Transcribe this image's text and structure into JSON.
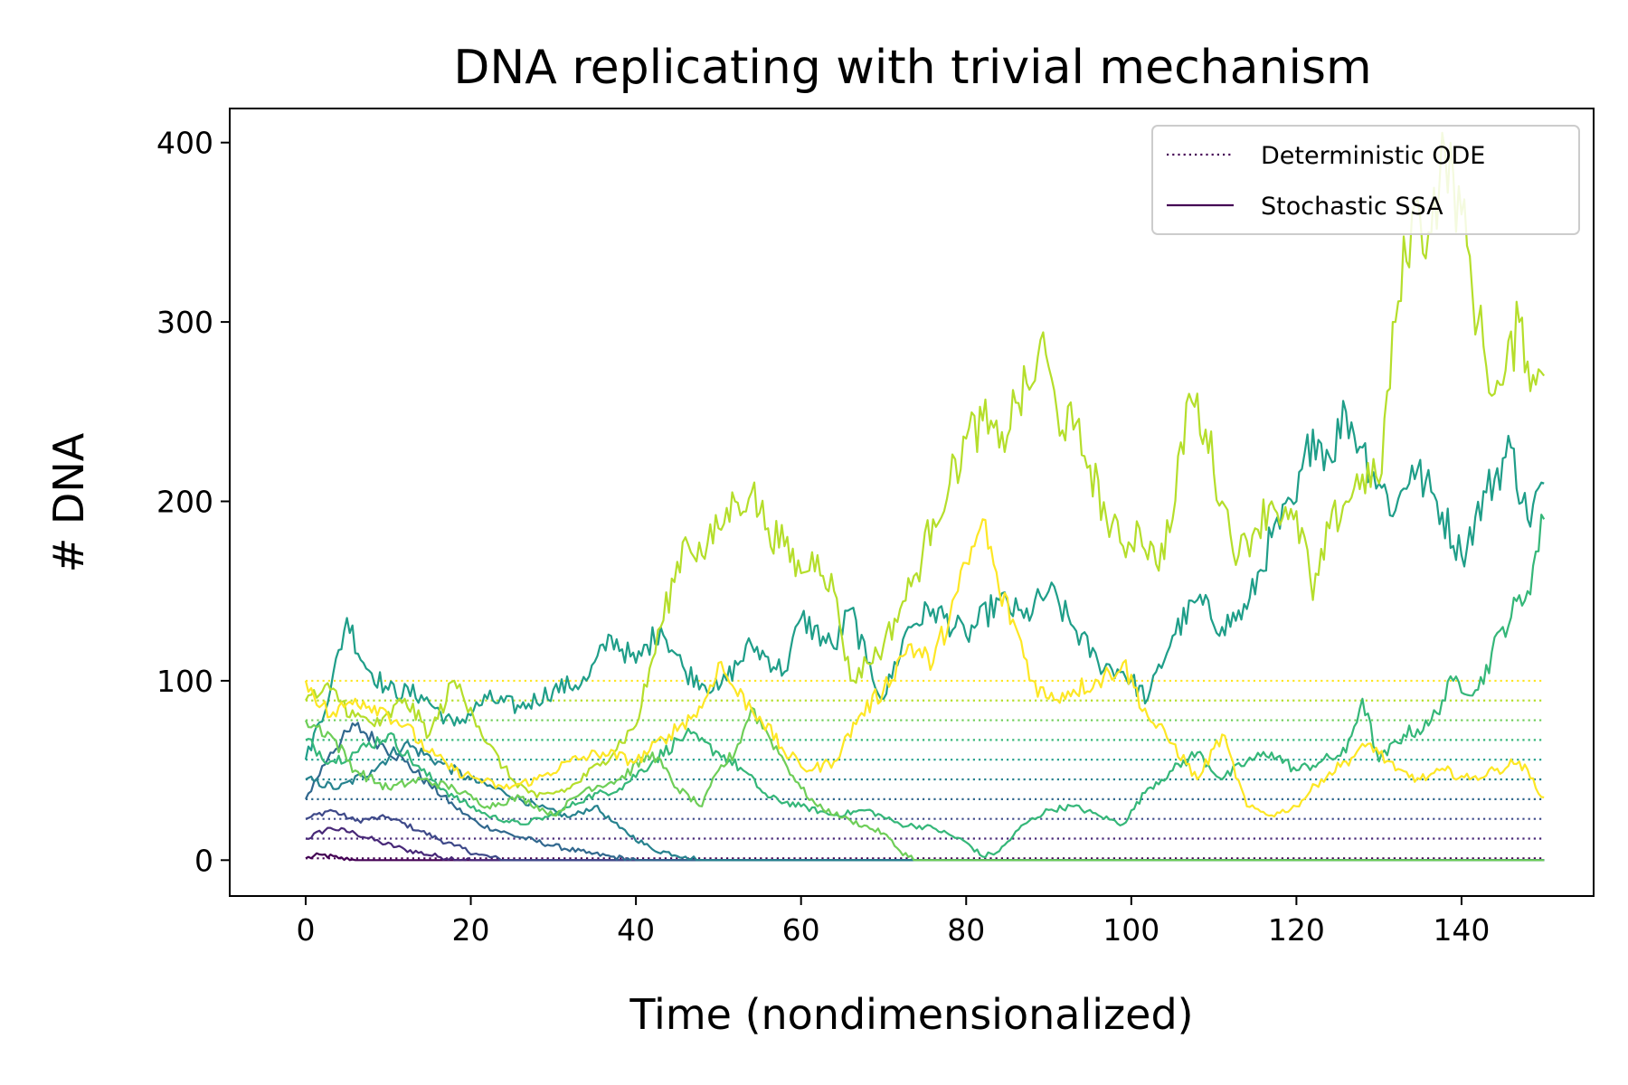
{
  "chart_data": {
    "type": "line",
    "title": "DNA replicating with trivial mechanism",
    "xlabel": "Time (nondimensionalized)",
    "ylabel": "# DNA",
    "xlim": [
      -9.2,
      156
    ],
    "ylim": [
      -20,
      419
    ],
    "xticks": [
      0,
      20,
      40,
      60,
      80,
      100,
      120,
      140
    ],
    "yticks": [
      0,
      100,
      200,
      300,
      400
    ],
    "grid": false,
    "colormap": "viridis",
    "legend": {
      "position": "top-right",
      "entries": [
        {
          "label": "Deterministic ODE",
          "style": "dotted",
          "color": "#440154"
        },
        {
          "label": "Stochastic SSA",
          "style": "solid",
          "color": "#440154"
        }
      ]
    },
    "ode_levels": [
      1,
      12,
      23,
      34,
      45,
      56,
      67,
      78,
      89,
      100
    ],
    "ode_colors": [
      "#440154",
      "#482878",
      "#3e4989",
      "#31688e",
      "#26828e",
      "#1f9e89",
      "#35b779",
      "#6ece58",
      "#b5de2b",
      "#fde725"
    ],
    "ssa_series": [
      {
        "color": "#440154",
        "points": [
          [
            0,
            1
          ],
          [
            2,
            3
          ],
          [
            4,
            1
          ],
          [
            6,
            0
          ],
          [
            150,
            0
          ]
        ]
      },
      {
        "color": "#482878",
        "points": [
          [
            0,
            12
          ],
          [
            3,
            18
          ],
          [
            6,
            15
          ],
          [
            9,
            10
          ],
          [
            12,
            6
          ],
          [
            16,
            2
          ],
          [
            20,
            0
          ],
          [
            150,
            0
          ]
        ]
      },
      {
        "color": "#3e4989",
        "points": [
          [
            0,
            23
          ],
          [
            3,
            28
          ],
          [
            6,
            22
          ],
          [
            10,
            24
          ],
          [
            14,
            16
          ],
          [
            18,
            8
          ],
          [
            21,
            3
          ],
          [
            24,
            0
          ],
          [
            150,
            0
          ]
        ]
      },
      {
        "color": "#31688e",
        "points": [
          [
            0,
            34
          ],
          [
            3,
            60
          ],
          [
            6,
            75
          ],
          [
            9,
            65
          ],
          [
            12,
            55
          ],
          [
            15,
            42
          ],
          [
            18,
            30
          ],
          [
            21,
            20
          ],
          [
            25,
            14
          ],
          [
            30,
            8
          ],
          [
            34,
            4
          ],
          [
            37,
            2
          ],
          [
            40,
            0
          ],
          [
            150,
            0
          ]
        ]
      },
      {
        "color": "#26828e",
        "points": [
          [
            0,
            45
          ],
          [
            4,
            40
          ],
          [
            8,
            50
          ],
          [
            12,
            65
          ],
          [
            16,
            55
          ],
          [
            20,
            45
          ],
          [
            24,
            38
          ],
          [
            28,
            30
          ],
          [
            32,
            24
          ],
          [
            35,
            30
          ],
          [
            38,
            18
          ],
          [
            42,
            6
          ],
          [
            46,
            2
          ],
          [
            48,
            0
          ],
          [
            150,
            0
          ]
        ]
      },
      {
        "color": "#1f9e89",
        "points": [
          [
            0,
            56
          ],
          [
            3,
            95
          ],
          [
            5,
            135
          ],
          [
            7,
            110
          ],
          [
            10,
            95
          ],
          [
            14,
            92
          ],
          [
            18,
            75
          ],
          [
            22,
            90
          ],
          [
            26,
            85
          ],
          [
            30,
            95
          ],
          [
            34,
            100
          ],
          [
            37,
            125
          ],
          [
            40,
            110
          ],
          [
            43,
            130
          ],
          [
            46,
            105
          ],
          [
            50,
            95
          ],
          [
            54,
            120
          ],
          [
            58,
            105
          ],
          [
            60,
            135
          ],
          [
            64,
            118
          ],
          [
            66,
            140
          ],
          [
            68,
            110
          ],
          [
            70,
            90
          ],
          [
            73,
            130
          ],
          [
            76,
            140
          ],
          [
            80,
            125
          ],
          [
            84,
            145
          ],
          [
            87,
            135
          ],
          [
            90,
            150
          ],
          [
            93,
            130
          ],
          [
            96,
            110
          ],
          [
            99,
            105
          ],
          [
            102,
            90
          ],
          [
            105,
            125
          ],
          [
            108,
            145
          ],
          [
            111,
            130
          ],
          [
            114,
            140
          ],
          [
            117,
            180
          ],
          [
            120,
            200
          ],
          [
            122,
            240
          ],
          [
            124,
            225
          ],
          [
            126,
            250
          ],
          [
            128,
            230
          ],
          [
            130,
            210
          ],
          [
            132,
            195
          ],
          [
            134,
            220
          ],
          [
            137,
            200
          ],
          [
            140,
            170
          ],
          [
            143,
            205
          ],
          [
            146,
            230
          ],
          [
            148,
            190
          ],
          [
            150,
            210
          ]
        ]
      },
      {
        "color": "#35b779",
        "points": [
          [
            0,
            67
          ],
          [
            3,
            55
          ],
          [
            6,
            60
          ],
          [
            10,
            70
          ],
          [
            14,
            50
          ],
          [
            18,
            35
          ],
          [
            22,
            25
          ],
          [
            26,
            20
          ],
          [
            30,
            25
          ],
          [
            34,
            35
          ],
          [
            38,
            40
          ],
          [
            42,
            55
          ],
          [
            46,
            70
          ],
          [
            50,
            60
          ],
          [
            53,
            50
          ],
          [
            56,
            35
          ],
          [
            60,
            30
          ],
          [
            64,
            25
          ],
          [
            68,
            28
          ],
          [
            72,
            20
          ],
          [
            76,
            18
          ],
          [
            80,
            10
          ],
          [
            82,
            2
          ],
          [
            84,
            5
          ],
          [
            87,
            20
          ],
          [
            90,
            28
          ],
          [
            93,
            30
          ],
          [
            96,
            25
          ],
          [
            99,
            20
          ],
          [
            102,
            40
          ],
          [
            105,
            50
          ],
          [
            108,
            60
          ],
          [
            111,
            45
          ],
          [
            114,
            55
          ],
          [
            117,
            60
          ],
          [
            120,
            50
          ],
          [
            123,
            55
          ],
          [
            126,
            60
          ],
          [
            128,
            90
          ],
          [
            130,
            55
          ],
          [
            133,
            70
          ],
          [
            136,
            75
          ],
          [
            139,
            100
          ],
          [
            142,
            95
          ],
          [
            145,
            130
          ],
          [
            148,
            150
          ],
          [
            150,
            190
          ]
        ]
      },
      {
        "color": "#6ece58",
        "points": [
          [
            0,
            78
          ],
          [
            3,
            70
          ],
          [
            6,
            50
          ],
          [
            10,
            40
          ],
          [
            14,
            45
          ],
          [
            18,
            40
          ],
          [
            22,
            30
          ],
          [
            26,
            35
          ],
          [
            30,
            25
          ],
          [
            34,
            40
          ],
          [
            38,
            45
          ],
          [
            42,
            60
          ],
          [
            45,
            40
          ],
          [
            48,
            30
          ],
          [
            50,
            50
          ],
          [
            52,
            60
          ],
          [
            54,
            85
          ],
          [
            56,
            70
          ],
          [
            58,
            55
          ],
          [
            60,
            40
          ],
          [
            62,
            30
          ],
          [
            66,
            22
          ],
          [
            70,
            15
          ],
          [
            72,
            5
          ],
          [
            74,
            0
          ],
          [
            150,
            0
          ]
        ]
      },
      {
        "color": "#b5de2b",
        "points": [
          [
            0,
            89
          ],
          [
            3,
            95
          ],
          [
            6,
            80
          ],
          [
            9,
            75
          ],
          [
            12,
            90
          ],
          [
            15,
            70
          ],
          [
            18,
            100
          ],
          [
            20,
            85
          ],
          [
            22,
            65
          ],
          [
            25,
            45
          ],
          [
            28,
            35
          ],
          [
            32,
            40
          ],
          [
            36,
            55
          ],
          [
            40,
            75
          ],
          [
            43,
            130
          ],
          [
            46,
            180
          ],
          [
            48,
            170
          ],
          [
            50,
            185
          ],
          [
            52,
            200
          ],
          [
            54,
            205
          ],
          [
            56,
            185
          ],
          [
            58,
            175
          ],
          [
            60,
            160
          ],
          [
            62,
            170
          ],
          [
            64,
            150
          ],
          [
            66,
            100
          ],
          [
            68,
            110
          ],
          [
            70,
            120
          ],
          [
            72,
            140
          ],
          [
            74,
            160
          ],
          [
            76,
            190
          ],
          [
            78,
            210
          ],
          [
            80,
            235
          ],
          [
            82,
            245
          ],
          [
            84,
            230
          ],
          [
            86,
            255
          ],
          [
            88,
            265
          ],
          [
            89,
            290
          ],
          [
            91,
            250
          ],
          [
            93,
            240
          ],
          [
            95,
            220
          ],
          [
            97,
            190
          ],
          [
            99,
            175
          ],
          [
            101,
            185
          ],
          [
            103,
            165
          ],
          [
            105,
            190
          ],
          [
            107,
            260
          ],
          [
            109,
            240
          ],
          [
            111,
            200
          ],
          [
            113,
            170
          ],
          [
            115,
            185
          ],
          [
            117,
            200
          ],
          [
            119,
            190
          ],
          [
            121,
            180
          ],
          [
            122,
            145
          ],
          [
            124,
            185
          ],
          [
            126,
            200
          ],
          [
            128,
            215
          ],
          [
            130,
            210
          ],
          [
            132,
            300
          ],
          [
            134,
            360
          ],
          [
            136,
            350
          ],
          [
            138,
            395
          ],
          [
            140,
            360
          ],
          [
            142,
            300
          ],
          [
            144,
            260
          ],
          [
            145,
            265
          ],
          [
            147,
            300
          ],
          [
            149,
            265
          ],
          [
            150,
            270
          ]
        ]
      },
      {
        "color": "#fde725",
        "points": [
          [
            0,
            100
          ],
          [
            3,
            80
          ],
          [
            6,
            90
          ],
          [
            9,
            85
          ],
          [
            12,
            75
          ],
          [
            15,
            60
          ],
          [
            18,
            50
          ],
          [
            21,
            45
          ],
          [
            24,
            40
          ],
          [
            28,
            45
          ],
          [
            32,
            55
          ],
          [
            36,
            60
          ],
          [
            40,
            55
          ],
          [
            44,
            70
          ],
          [
            48,
            85
          ],
          [
            50,
            110
          ],
          [
            52,
            95
          ],
          [
            55,
            80
          ],
          [
            58,
            60
          ],
          [
            61,
            50
          ],
          [
            64,
            55
          ],
          [
            67,
            80
          ],
          [
            70,
            95
          ],
          [
            73,
            120
          ],
          [
            76,
            110
          ],
          [
            79,
            150
          ],
          [
            81,
            175
          ],
          [
            82,
            190
          ],
          [
            84,
            150
          ],
          [
            86,
            130
          ],
          [
            88,
            100
          ],
          [
            90,
            90
          ],
          [
            93,
            95
          ],
          [
            96,
            100
          ],
          [
            99,
            110
          ],
          [
            102,
            80
          ],
          [
            105,
            65
          ],
          [
            108,
            45
          ],
          [
            111,
            70
          ],
          [
            114,
            30
          ],
          [
            117,
            25
          ],
          [
            120,
            30
          ],
          [
            123,
            45
          ],
          [
            126,
            55
          ],
          [
            129,
            65
          ],
          [
            132,
            50
          ],
          [
            135,
            45
          ],
          [
            138,
            50
          ],
          [
            141,
            45
          ],
          [
            144,
            50
          ],
          [
            147,
            55
          ],
          [
            150,
            35
          ]
        ]
      }
    ]
  }
}
